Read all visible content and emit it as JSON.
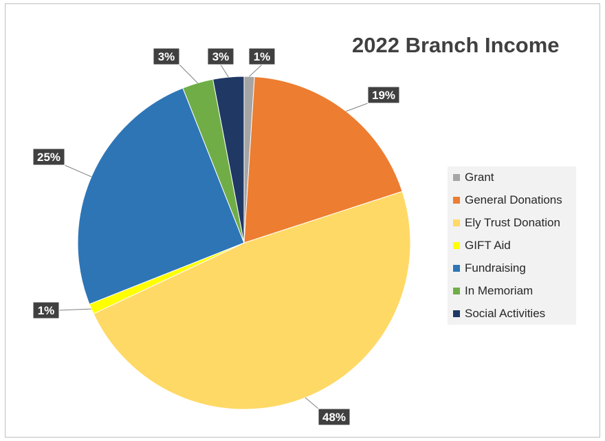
{
  "chart_data": {
    "type": "pie",
    "title": "2022 Branch Income",
    "legend_position": "right",
    "slices": [
      {
        "name": "Grant",
        "value": 1,
        "label": "1%",
        "color": "#a5a5a5"
      },
      {
        "name": "General Donations",
        "value": 19,
        "label": "19%",
        "color": "#ed7d31"
      },
      {
        "name": "Ely Trust Donation",
        "value": 48,
        "label": "48%",
        "color": "#ffd966"
      },
      {
        "name": "GIFT Aid",
        "value": 1,
        "label": "1%",
        "color": "#ffff00"
      },
      {
        "name": "Fundraising",
        "value": 25,
        "label": "25%",
        "color": "#2e75b6"
      },
      {
        "name": "In Memoriam",
        "value": 3,
        "label": "3%",
        "color": "#70ad47"
      },
      {
        "name": "Social Activities",
        "value": 3,
        "label": "3%",
        "color": "#203864"
      }
    ]
  }
}
